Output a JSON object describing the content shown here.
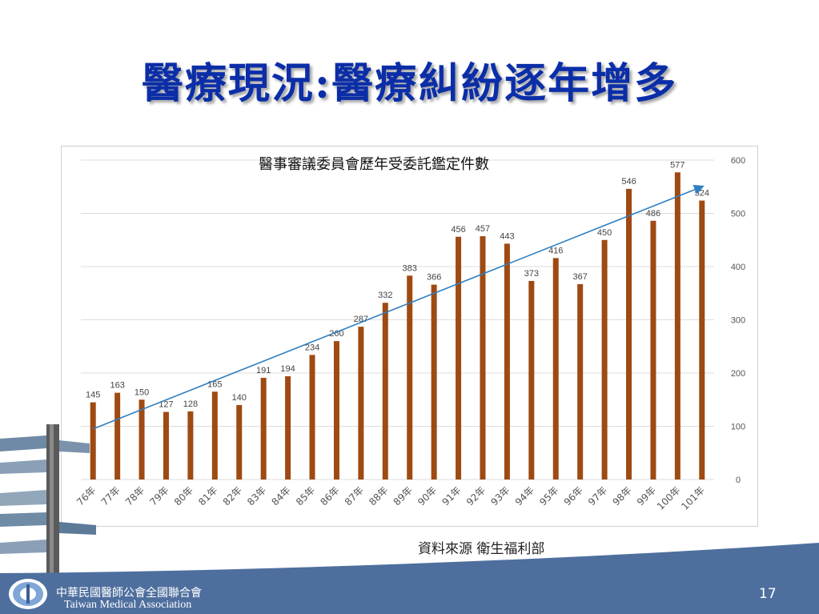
{
  "slide": {
    "title": "醫療現況:醫療糾紛逐年增多",
    "source": "資料來源 衛生福利部",
    "footer_org_zh": "中華民國醫師公會全國聯合會",
    "footer_org_en": "Taiwan Medical Association",
    "page_number": "17"
  },
  "colors": {
    "title": "#0b2ea8",
    "bar": "#9e4a12",
    "trend": "#2f7fc1",
    "footer": "#4e6f9e"
  },
  "chart_data": {
    "type": "bar",
    "title": "醫事審議委員會歷年受委託鑑定件數",
    "categories": [
      "76年",
      "77年",
      "78年",
      "79年",
      "80年",
      "81年",
      "82年",
      "83年",
      "84年",
      "85年",
      "86年",
      "87年",
      "88年",
      "89年",
      "90年",
      "91年",
      "92年",
      "93年",
      "94年",
      "95年",
      "96年",
      "97年",
      "98年",
      "99年",
      "100年",
      "101年"
    ],
    "values": [
      145,
      163,
      150,
      127,
      128,
      165,
      140,
      191,
      194,
      234,
      260,
      287,
      332,
      383,
      366,
      456,
      457,
      443,
      373,
      416,
      367,
      450,
      546,
      486,
      577,
      524
    ],
    "ylim": [
      0,
      600
    ],
    "yticks": [
      0,
      100,
      200,
      300,
      400,
      500,
      600
    ],
    "y_axis_position": "right",
    "grid": true,
    "trendline": {
      "from": 95,
      "to": 550
    }
  }
}
